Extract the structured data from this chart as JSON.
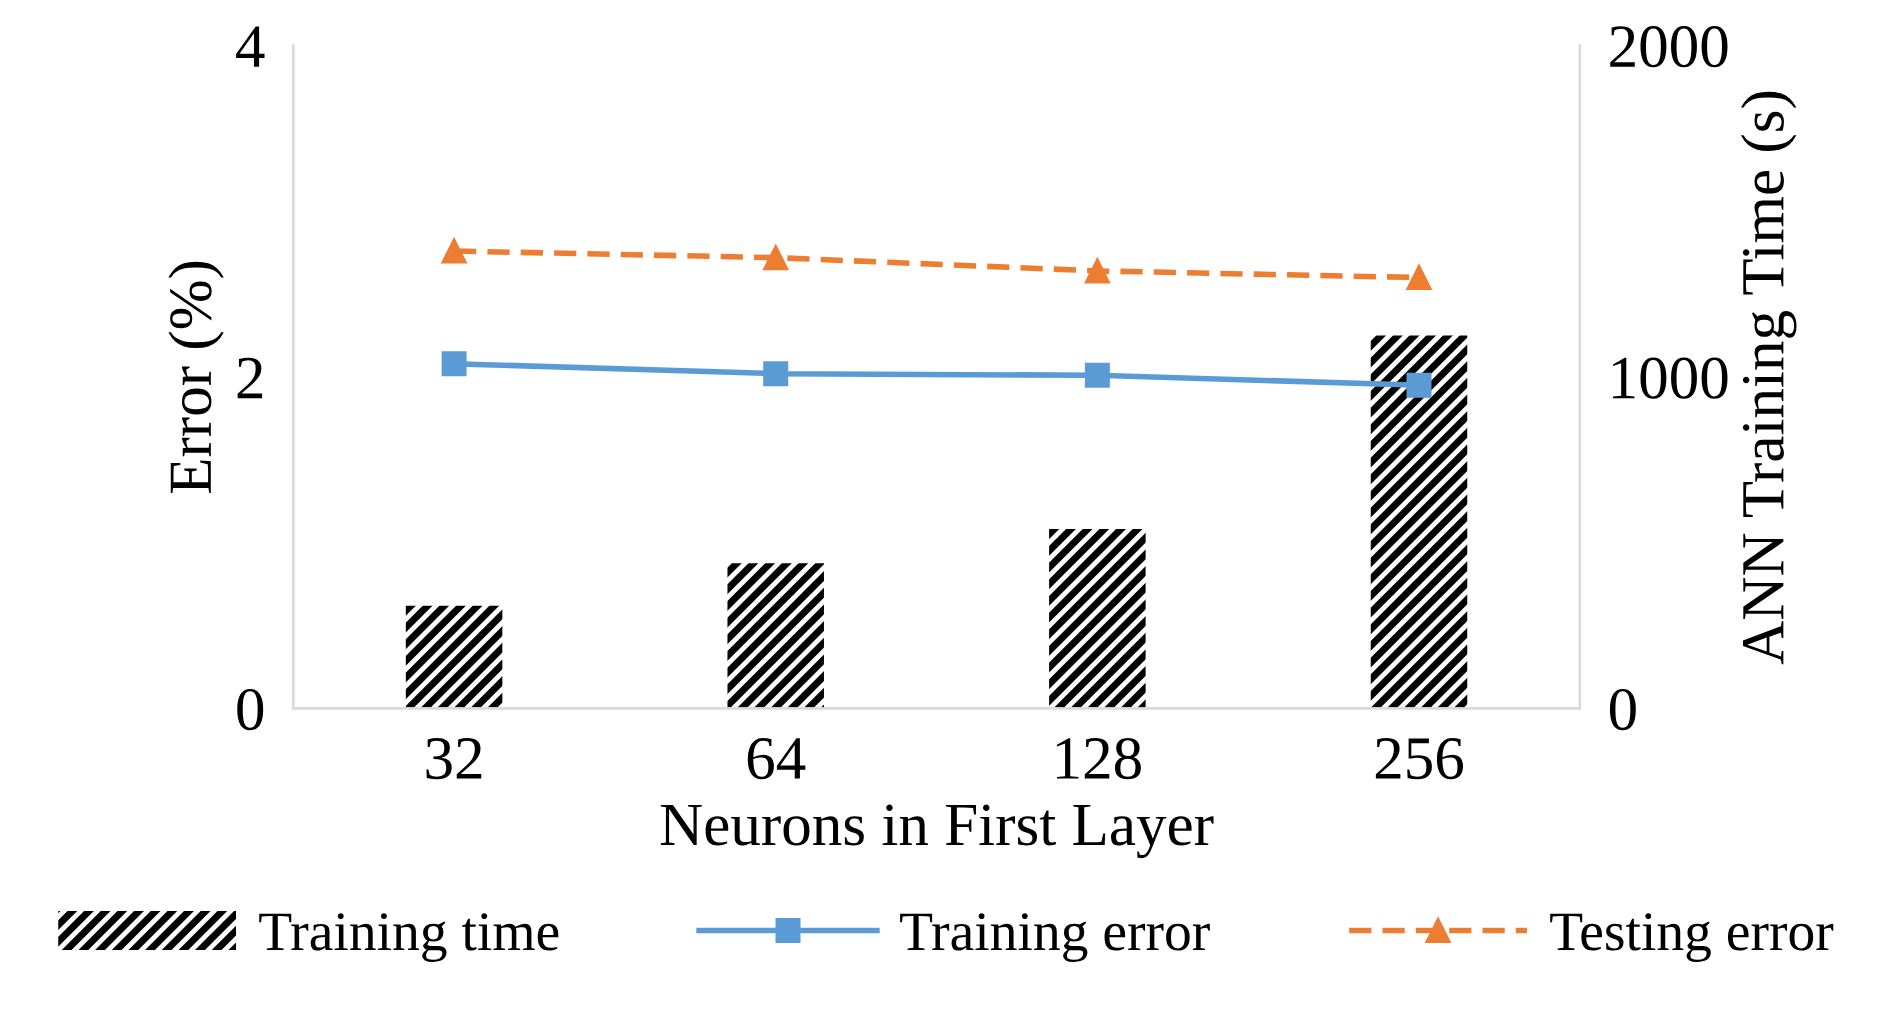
{
  "chart_data": {
    "type": "line",
    "xlabel": "Neurons in First Layer",
    "ylabel": "Error (%)",
    "y2label": "ANN Training Time (s)",
    "categories": [
      "32",
      "64",
      "128",
      "256"
    ],
    "series": [
      {
        "name": "Training time",
        "type": "bar",
        "axis": "y2",
        "color": "#000000",
        "values": [
          310,
          438,
          541,
          1125
        ]
      },
      {
        "name": "Training error",
        "color": "#5b9bd5",
        "marker": "square",
        "line_style": "solid",
        "values": [
          2.08,
          2.02,
          2.01,
          1.95
        ]
      },
      {
        "name": "Testing error",
        "color": "#ed7d31",
        "marker": "triangle",
        "line_style": "dashed",
        "values": [
          2.76,
          2.72,
          2.64,
          2.6
        ]
      }
    ],
    "ylim": [
      0,
      4
    ],
    "yticks": [
      0,
      2,
      4
    ],
    "y2lim": [
      0,
      2000
    ],
    "y2ticks": [
      0,
      1000,
      2000
    ],
    "grid": false,
    "legend": "bottom"
  }
}
